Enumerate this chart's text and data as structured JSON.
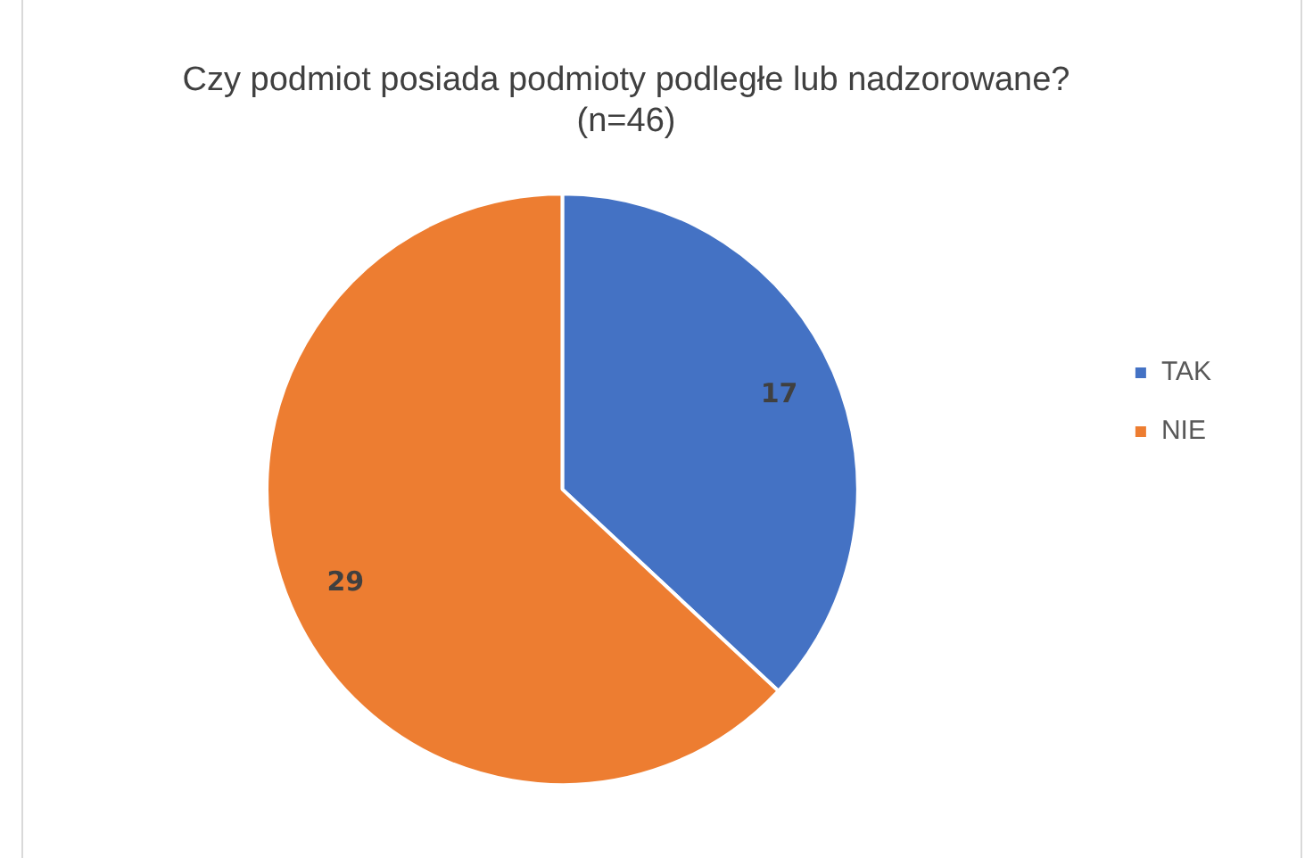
{
  "chart_data": {
    "type": "pie",
    "title": "Czy podmiot posiada podmioty podległe lub nadzorowane?",
    "subtitle": "(n=46)",
    "categories": [
      "TAK",
      "NIE"
    ],
    "values": [
      17,
      29
    ],
    "colors": [
      "#4472c4",
      "#ed7d31"
    ],
    "data_labels": true,
    "legend": "right"
  }
}
